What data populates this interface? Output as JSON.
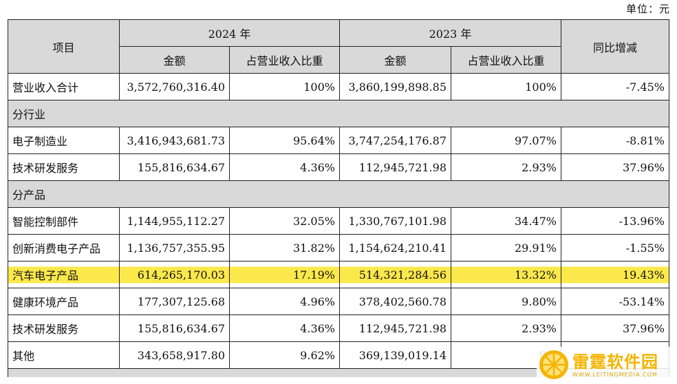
{
  "unit_label": "单位：元",
  "header": {
    "item": "项目",
    "year_2024": "2024 年",
    "year_2023": "2023 年",
    "yoy": "同比增减",
    "amount": "金额",
    "ratio": "占营业收入比重"
  },
  "rows": [
    {
      "label": "营业收入合计",
      "a2024": "3,572,760,316.40",
      "r2024": "100%",
      "a2023": "3,860,199,898.85",
      "r2023": "100%",
      "yoy": "-7.45%"
    },
    {
      "section": "分行业"
    },
    {
      "label": "电子制造业",
      "a2024": "3,416,943,681.73",
      "r2024": "95.64%",
      "a2023": "3,747,254,176.87",
      "r2023": "97.07%",
      "yoy": "-8.81%"
    },
    {
      "label": "技术研发服务",
      "a2024": "155,816,634.67",
      "r2024": "4.36%",
      "a2023": "112,945,721.98",
      "r2023": "2.93%",
      "yoy": "37.96%"
    },
    {
      "section": "分产品"
    },
    {
      "label": "智能控制部件",
      "a2024": "1,144,955,112.27",
      "r2024": "32.05%",
      "a2023": "1,330,767,101.98",
      "r2023": "34.47%",
      "yoy": "-13.96%"
    },
    {
      "label": "创新消费电子产品",
      "a2024": "1,136,757,355.95",
      "r2024": "31.82%",
      "a2023": "1,154,624,210.41",
      "r2023": "29.91%",
      "yoy": "-1.55%"
    },
    {
      "label": "汽车电子产品",
      "a2024": "614,265,170.03",
      "r2024": "17.19%",
      "a2023": "514,321,284.56",
      "r2023": "13.32%",
      "yoy": "19.43%",
      "highlight": true
    },
    {
      "label": "健康环境产品",
      "a2024": "177,307,125.68",
      "r2024": "4.96%",
      "a2023": "378,402,560.78",
      "r2023": "9.80%",
      "yoy": "-53.14%"
    },
    {
      "label": "技术研发服务",
      "a2024": "155,816,634.67",
      "r2024": "4.36%",
      "a2023": "112,945,721.98",
      "r2023": "2.93%",
      "yoy": "37.96%"
    },
    {
      "label": "其他",
      "a2024": "343,658,917.80",
      "r2024": "9.62%",
      "a2023": "369,139,019.14",
      "r2023": "9.5",
      "yoy": ""
    }
  ],
  "highlight_color": "#fbe84b",
  "watermark": {
    "name": "雷霆软件园",
    "url": "WWW.LEITINGMEDIA.COM"
  }
}
